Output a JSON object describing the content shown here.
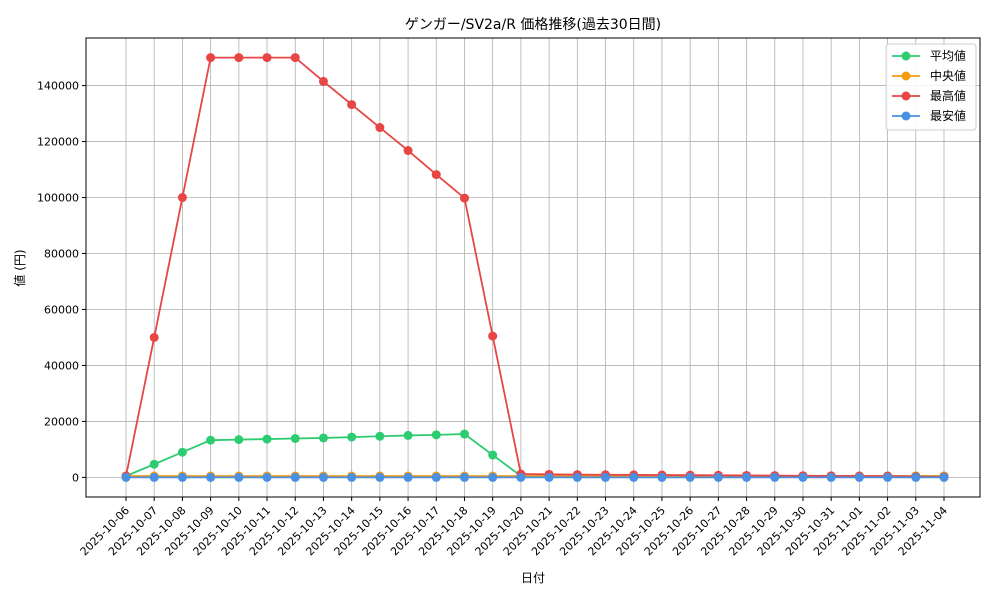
{
  "chart_data": {
    "type": "line",
    "title": "ゲンガー/SV2a/R 価格推移(過去30日間)",
    "xlabel": "日付",
    "ylabel": "値 (円)",
    "x": [
      "2025-10-06",
      "2025-10-07",
      "2025-10-08",
      "2025-10-09",
      "2025-10-10",
      "2025-10-11",
      "2025-10-12",
      "2025-10-13",
      "2025-10-14",
      "2025-10-15",
      "2025-10-16",
      "2025-10-17",
      "2025-10-18",
      "2025-10-19",
      "2025-10-20",
      "2025-10-21",
      "2025-10-22",
      "2025-10-23",
      "2025-10-24",
      "2025-10-25",
      "2025-10-26",
      "2025-10-27",
      "2025-10-28",
      "2025-10-29",
      "2025-10-30",
      "2025-10-31",
      "2025-11-01",
      "2025-11-02",
      "2025-11-03",
      "2025-11-04"
    ],
    "ylim": [
      -7000,
      157000
    ],
    "yticks": [
      0,
      20000,
      40000,
      60000,
      80000,
      100000,
      120000,
      140000
    ],
    "grid": true,
    "legend_position": "top-right",
    "series": [
      {
        "name": "平均値",
        "color": "#2ecc71",
        "values": [
          500,
          4700,
          9000,
          13300,
          13500,
          13700,
          13900,
          14100,
          14400,
          14700,
          15000,
          15200,
          15500,
          8000,
          500,
          500,
          500,
          500,
          500,
          500,
          500,
          500,
          500,
          500,
          500,
          500,
          500,
          500,
          500,
          500
        ]
      },
      {
        "name": "中央値",
        "color": "#f39c12",
        "values": [
          500,
          500,
          500,
          500,
          500,
          500,
          500,
          500,
          500,
          500,
          500,
          500,
          500,
          500,
          500,
          500,
          500,
          500,
          500,
          500,
          500,
          500,
          500,
          500,
          500,
          500,
          500,
          500,
          500,
          500
        ]
      },
      {
        "name": "最高値",
        "color": "#e84545",
        "values": [
          500,
          50000,
          100000,
          150000,
          150000,
          150000,
          150000,
          141500,
          133200,
          125000,
          116800,
          108200,
          99800,
          50500,
          1200,
          1100,
          1000,
          950,
          900,
          850,
          800,
          750,
          700,
          650,
          600,
          550,
          500,
          450,
          300,
          200
        ]
      },
      {
        "name": "最安値",
        "color": "#4a90e2",
        "values": [
          0,
          0,
          0,
          0,
          0,
          0,
          0,
          0,
          0,
          0,
          0,
          0,
          0,
          0,
          0,
          0,
          0,
          0,
          0,
          0,
          0,
          0,
          0,
          0,
          0,
          0,
          0,
          0,
          0,
          0
        ]
      }
    ]
  }
}
